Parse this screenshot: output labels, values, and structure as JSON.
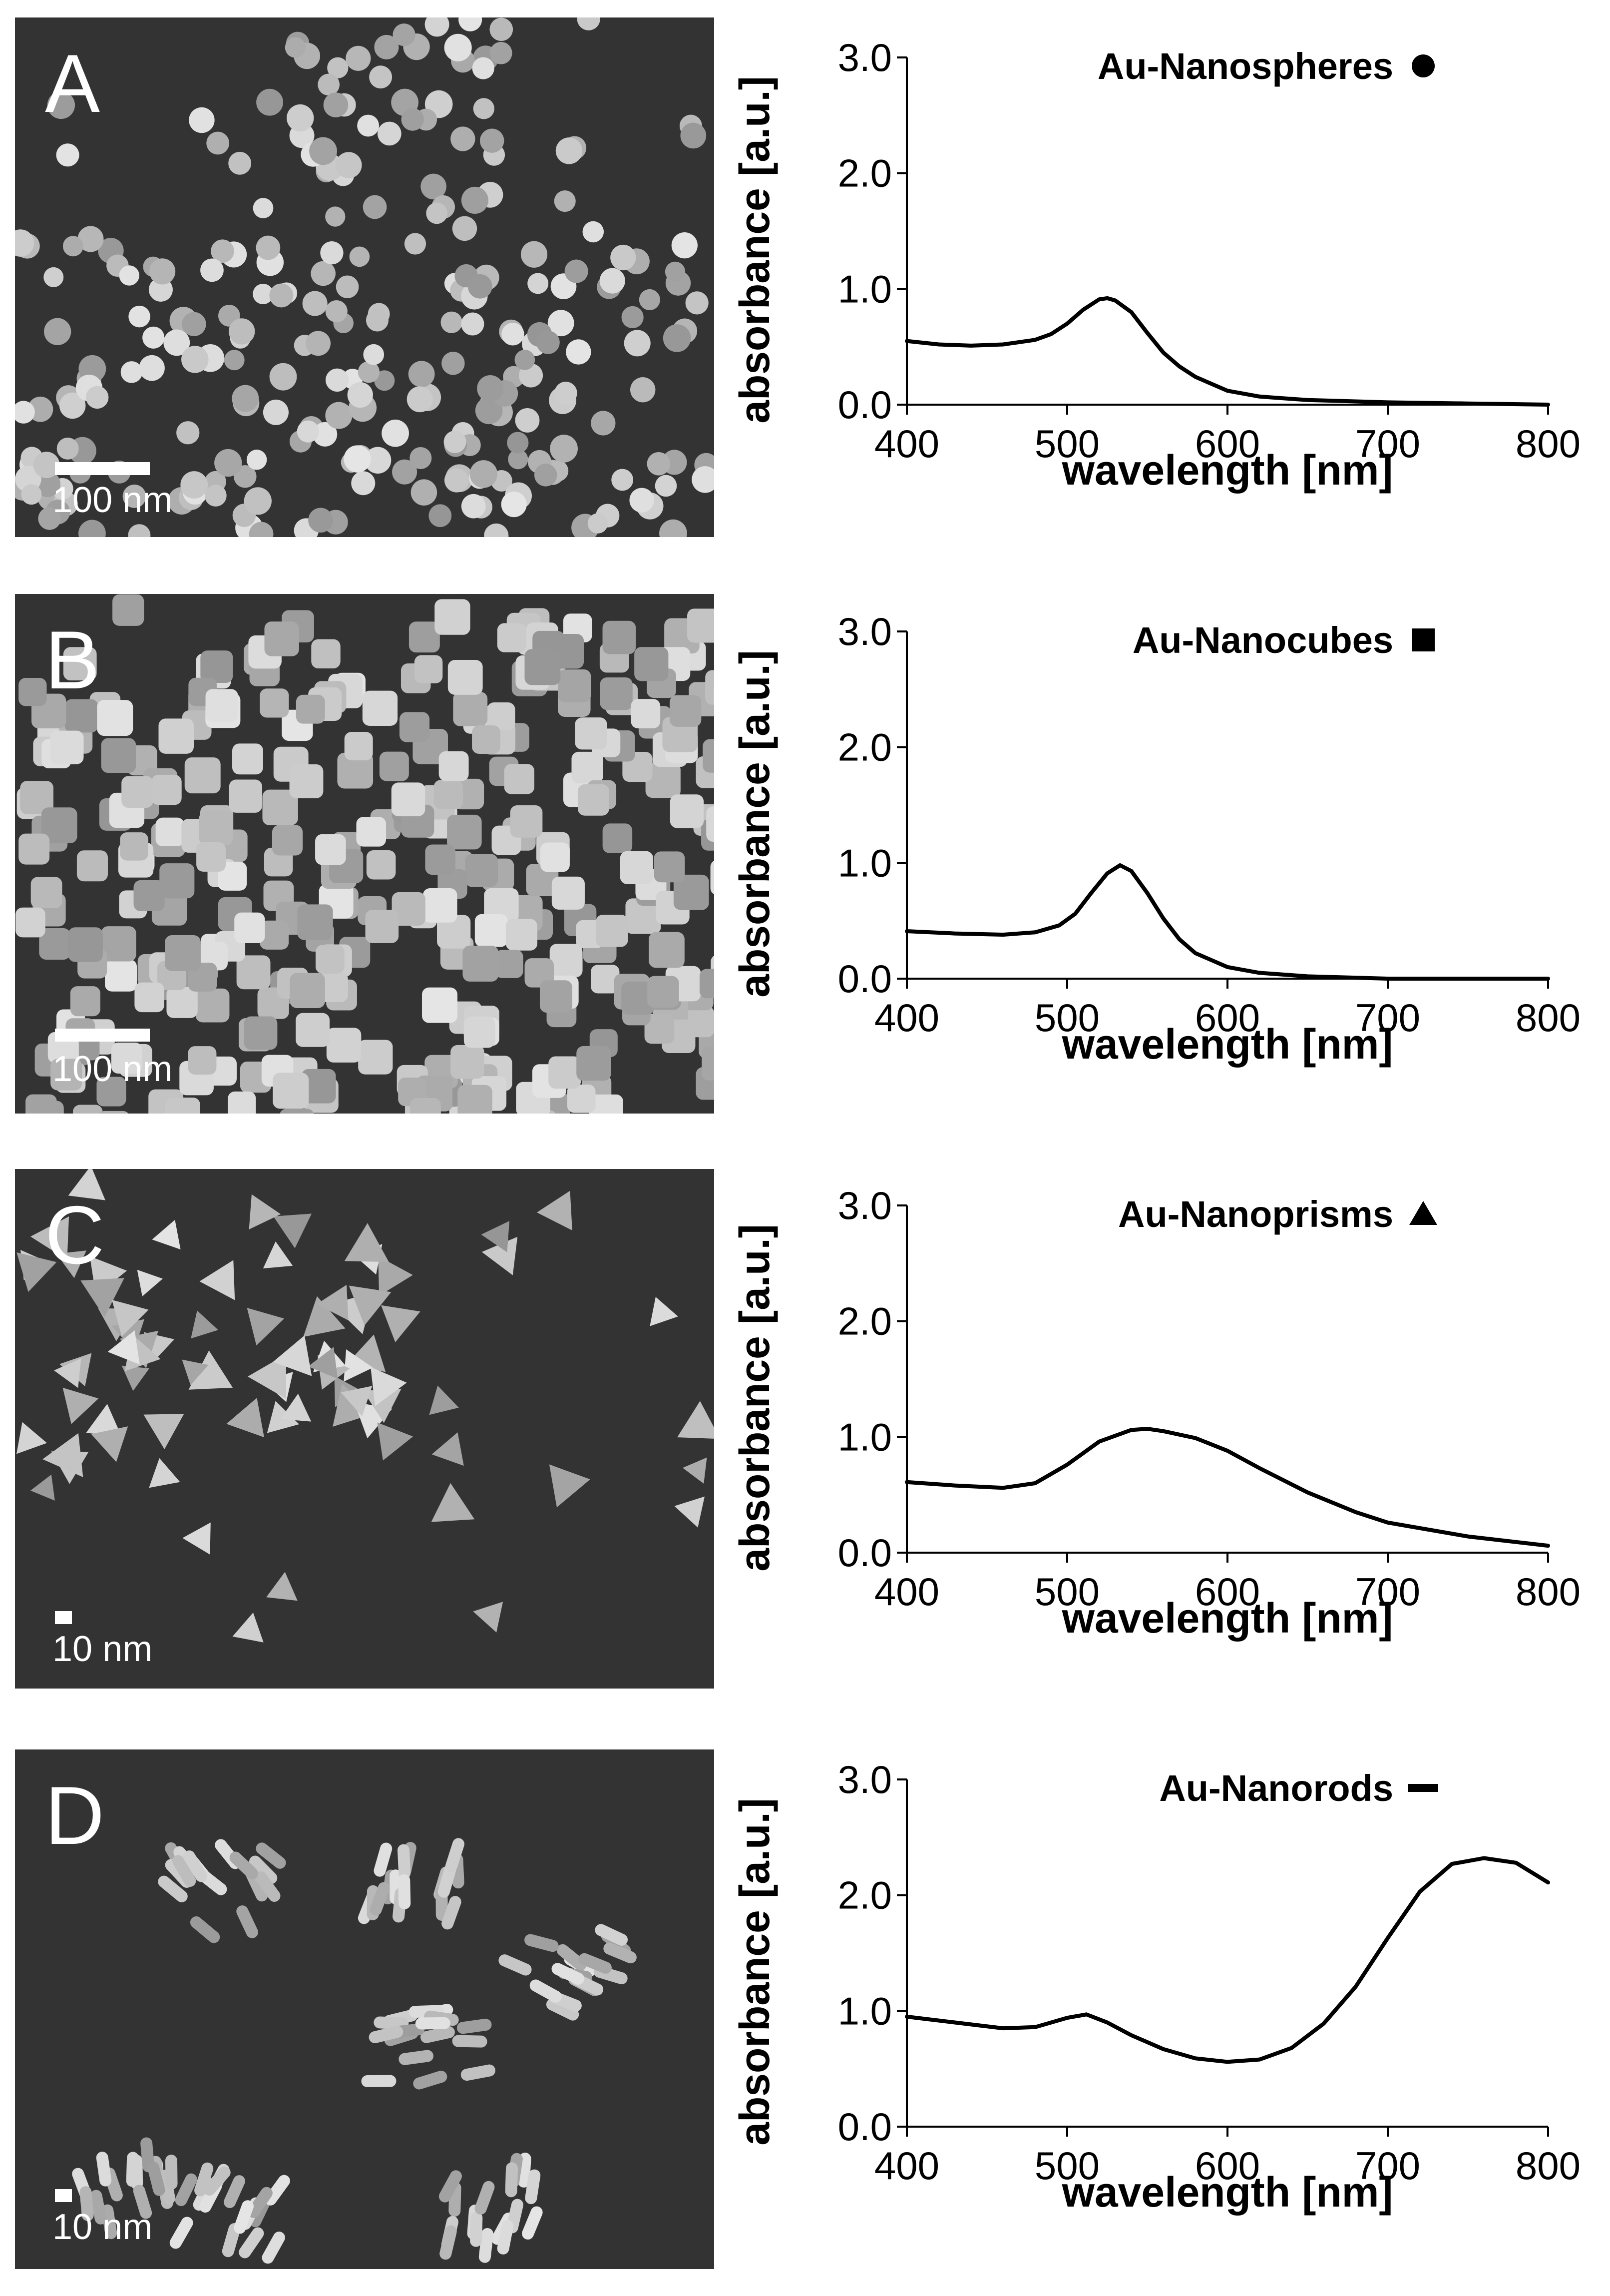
{
  "colors": {
    "line": "#000000",
    "sem_background": "#333333",
    "particle": "#b9b9b9"
  },
  "panels": [
    {
      "letter": "A",
      "scale_label": "100 nm",
      "particle_shape": "sphere",
      "chart_data": {
        "type": "line",
        "title": "Au-Nanospheres",
        "marker": "circle",
        "xlabel": "wavelength [nm]",
        "ylabel": "absorbance [a.u.]",
        "xlim": [
          400,
          800
        ],
        "ylim": [
          0,
          3
        ],
        "xticks": [
          "400",
          "500",
          "600",
          "700",
          "800"
        ],
        "yticks": [
          "0.0",
          "1.0",
          "2.0",
          "3.0"
        ],
        "x": [
          400,
          420,
          440,
          460,
          480,
          490,
          500,
          510,
          520,
          525,
          530,
          540,
          550,
          560,
          570,
          580,
          600,
          620,
          650,
          700,
          750,
          800
        ],
        "y": [
          0.55,
          0.52,
          0.51,
          0.52,
          0.56,
          0.61,
          0.7,
          0.82,
          0.91,
          0.92,
          0.9,
          0.8,
          0.62,
          0.45,
          0.33,
          0.24,
          0.12,
          0.07,
          0.04,
          0.02,
          0.01,
          0.0
        ]
      }
    },
    {
      "letter": "B",
      "scale_label": "100 nm",
      "particle_shape": "cube",
      "chart_data": {
        "type": "line",
        "title": "Au-Nanocubes",
        "marker": "square",
        "xlabel": "wavelength [nm]",
        "ylabel": "absorbance [a.u.]",
        "xlim": [
          400,
          800
        ],
        "ylim": [
          0,
          3
        ],
        "xticks": [
          "400",
          "500",
          "600",
          "700",
          "800"
        ],
        "yticks": [
          "0.0",
          "1.0",
          "2.0",
          "3.0"
        ],
        "x": [
          400,
          430,
          460,
          480,
          495,
          505,
          515,
          525,
          533,
          540,
          550,
          560,
          570,
          580,
          600,
          620,
          650,
          700,
          750,
          800
        ],
        "y": [
          0.41,
          0.39,
          0.38,
          0.4,
          0.46,
          0.56,
          0.74,
          0.91,
          0.98,
          0.93,
          0.74,
          0.52,
          0.34,
          0.22,
          0.1,
          0.05,
          0.02,
          0.0,
          0.0,
          0.0
        ]
      }
    },
    {
      "letter": "C",
      "scale_label": "10 nm",
      "particle_shape": "prism",
      "chart_data": {
        "type": "line",
        "title": "Au-Nanoprisms",
        "marker": "triangle",
        "xlabel": "wavelength [nm]",
        "ylabel": "absorbance [a.u.]",
        "xlim": [
          400,
          800
        ],
        "ylim": [
          0,
          3
        ],
        "xticks": [
          "400",
          "500",
          "600",
          "700",
          "800"
        ],
        "yticks": [
          "0.0",
          "1.0",
          "2.0",
          "3.0"
        ],
        "x": [
          400,
          430,
          460,
          480,
          500,
          520,
          540,
          550,
          560,
          580,
          600,
          620,
          650,
          680,
          700,
          750,
          800
        ],
        "y": [
          0.61,
          0.58,
          0.56,
          0.6,
          0.76,
          0.96,
          1.06,
          1.07,
          1.05,
          0.99,
          0.88,
          0.73,
          0.52,
          0.35,
          0.26,
          0.14,
          0.06
        ]
      }
    },
    {
      "letter": "D",
      "scale_label": "10 nm",
      "particle_shape": "rod",
      "chart_data": {
        "type": "line",
        "title": "Au-Nanorods",
        "marker": "dash",
        "xlabel": "wavelength [nm]",
        "ylabel": "absorbance [a.u.]",
        "xlim": [
          400,
          800
        ],
        "ylim": [
          0,
          3
        ],
        "xticks": [
          "400",
          "500",
          "600",
          "700",
          "800"
        ],
        "yticks": [
          "0.0",
          "1.0",
          "2.0",
          "3.0"
        ],
        "x": [
          400,
          430,
          460,
          480,
          500,
          512,
          525,
          540,
          560,
          580,
          600,
          620,
          640,
          660,
          680,
          700,
          720,
          740,
          760,
          780,
          800
        ],
        "y": [
          0.95,
          0.9,
          0.85,
          0.86,
          0.94,
          0.97,
          0.9,
          0.79,
          0.67,
          0.59,
          0.56,
          0.58,
          0.68,
          0.89,
          1.21,
          1.63,
          2.03,
          2.27,
          2.32,
          2.28,
          2.11
        ]
      }
    }
  ]
}
